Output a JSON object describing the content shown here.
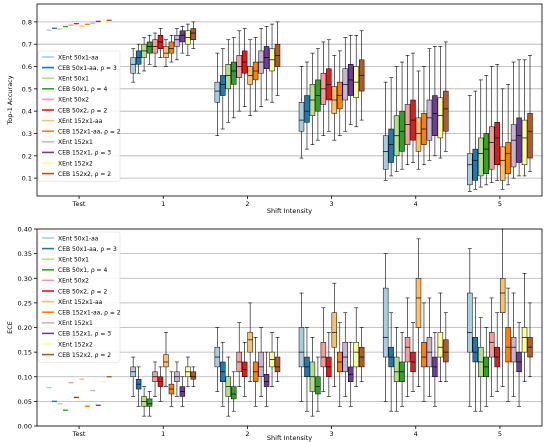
{
  "model_names": [
    "XEnt 50x1-aa",
    "CEB 50x1-aa, ρ = 3",
    "XEnt 50x1",
    "CEB 50x1, ρ = 4",
    "XEnt 50x2",
    "CEB 50x2, ρ = 2",
    "XEnt 152x1-aa",
    "CEB 152x1-aa, ρ = 2",
    "XEnt 152x1",
    "CEB 152x1, ρ = 3",
    "XEnt 152x2",
    "CEB 152x2, ρ = 2"
  ],
  "colors": [
    "#a6cee3",
    "#1f78b4",
    "#b2df8a",
    "#33a02c",
    "#fb9a99",
    "#e31a1c",
    "#fdbf6f",
    "#ff7f00",
    "#cab2d6",
    "#6a3d9a",
    "#ffff99",
    "#b15928"
  ],
  "chart_data": [
    {
      "type": "box",
      "xlabel": "Shift Intensity",
      "ylabel": "Top-1 Accuracy",
      "categories": [
        "Test",
        "1",
        "2",
        "3",
        "4",
        "5"
      ],
      "ylim": [
        0.02,
        0.88
      ],
      "yticks": [
        0.1,
        0.2,
        0.3,
        0.4,
        0.5,
        0.6,
        0.7,
        0.8
      ],
      "grid": "horizontal",
      "legend": "left",
      "series": [
        {
          "name": "XEnt 50x1-aa",
          "test": 0.763,
          "boxes": [
            [
              0.53,
              0.57,
              0.61,
              0.64,
              0.68
            ],
            [
              0.29,
              0.44,
              0.49,
              0.53,
              0.66
            ],
            [
              0.19,
              0.31,
              0.36,
              0.44,
              0.6
            ],
            [
              0.09,
              0.14,
              0.22,
              0.29,
              0.53
            ],
            [
              0.04,
              0.07,
              0.16,
              0.21,
              0.47
            ]
          ]
        },
        {
          "name": "CEB 50x1-aa, ρ = 3",
          "test": 0.771,
          "boxes": [
            [
              0.57,
              0.61,
              0.64,
              0.67,
              0.7
            ],
            [
              0.32,
              0.47,
              0.52,
              0.56,
              0.68
            ],
            [
              0.23,
              0.35,
              0.4,
              0.47,
              0.62
            ],
            [
              0.11,
              0.17,
              0.25,
              0.32,
              0.55
            ],
            [
              0.05,
              0.09,
              0.18,
              0.23,
              0.49
            ]
          ]
        },
        {
          "name": "XEnt 50x1",
          "test": 0.768,
          "boxes": [
            [
              0.58,
              0.64,
              0.67,
              0.7,
              0.73
            ],
            [
              0.35,
              0.5,
              0.56,
              0.61,
              0.72
            ],
            [
              0.25,
              0.38,
              0.45,
              0.52,
              0.66
            ],
            [
              0.13,
              0.2,
              0.29,
              0.38,
              0.6
            ],
            [
              0.06,
              0.11,
              0.21,
              0.28,
              0.54
            ]
          ]
        },
        {
          "name": "CEB 50x1, ρ = 4",
          "test": 0.779,
          "boxes": [
            [
              0.61,
              0.66,
              0.69,
              0.71,
              0.74
            ],
            [
              0.37,
              0.52,
              0.58,
              0.62,
              0.73
            ],
            [
              0.27,
              0.4,
              0.47,
              0.54,
              0.68
            ],
            [
              0.14,
              0.22,
              0.31,
              0.4,
              0.62
            ],
            [
              0.07,
              0.12,
              0.23,
              0.3,
              0.56
            ]
          ]
        },
        {
          "name": "XEnt 50x2",
          "test": 0.785,
          "boxes": [
            [
              0.6,
              0.66,
              0.69,
              0.72,
              0.75
            ],
            [
              0.4,
              0.55,
              0.6,
              0.65,
              0.76
            ],
            [
              0.29,
              0.43,
              0.5,
              0.57,
              0.71
            ],
            [
              0.16,
              0.25,
              0.34,
              0.43,
              0.65
            ],
            [
              0.08,
              0.14,
              0.26,
              0.33,
              0.6
            ]
          ]
        },
        {
          "name": "CEB 50x2, ρ = 2",
          "test": 0.792,
          "boxes": [
            [
              0.64,
              0.68,
              0.71,
              0.74,
              0.77
            ],
            [
              0.42,
              0.57,
              0.62,
              0.67,
              0.77
            ],
            [
              0.31,
              0.45,
              0.52,
              0.59,
              0.72
            ],
            [
              0.17,
              0.27,
              0.36,
              0.45,
              0.66
            ],
            [
              0.09,
              0.16,
              0.28,
              0.35,
              0.61
            ]
          ]
        },
        {
          "name": "XEnt 152x1-aa",
          "test": 0.781,
          "boxes": [
            [
              0.6,
              0.64,
              0.66,
              0.69,
              0.72
            ],
            [
              0.38,
              0.52,
              0.56,
              0.6,
              0.72
            ],
            [
              0.27,
              0.39,
              0.45,
              0.51,
              0.65
            ],
            [
              0.14,
              0.22,
              0.3,
              0.37,
              0.58
            ],
            [
              0.05,
              0.09,
              0.18,
              0.24,
              0.5
            ]
          ]
        },
        {
          "name": "CEB 152x1-aa, ρ = 2",
          "test": 0.789,
          "boxes": [
            [
              0.62,
              0.66,
              0.68,
              0.71,
              0.74
            ],
            [
              0.4,
              0.54,
              0.58,
              0.62,
              0.73
            ],
            [
              0.29,
              0.41,
              0.47,
              0.53,
              0.67
            ],
            [
              0.16,
              0.25,
              0.32,
              0.39,
              0.6
            ],
            [
              0.07,
              0.12,
              0.21,
              0.26,
              0.52
            ]
          ]
        },
        {
          "name": "XEnt 152x1",
          "test": 0.794,
          "boxes": [
            [
              0.63,
              0.69,
              0.72,
              0.74,
              0.77
            ],
            [
              0.42,
              0.57,
              0.62,
              0.67,
              0.77
            ],
            [
              0.31,
              0.45,
              0.52,
              0.59,
              0.73
            ],
            [
              0.18,
              0.27,
              0.37,
              0.45,
              0.68
            ],
            [
              0.1,
              0.15,
              0.27,
              0.34,
              0.62
            ]
          ]
        },
        {
          "name": "CEB 152x1, ρ = 3",
          "test": 0.802,
          "boxes": [
            [
              0.66,
              0.71,
              0.74,
              0.76,
              0.78
            ],
            [
              0.45,
              0.59,
              0.64,
              0.69,
              0.78
            ],
            [
              0.34,
              0.47,
              0.54,
              0.61,
              0.74
            ],
            [
              0.2,
              0.29,
              0.39,
              0.47,
              0.69
            ],
            [
              0.11,
              0.17,
              0.29,
              0.37,
              0.63
            ]
          ]
        },
        {
          "name": "XEnt 152x2",
          "test": 0.798,
          "boxes": [
            [
              0.65,
              0.7,
              0.73,
              0.76,
              0.79
            ],
            [
              0.44,
              0.58,
              0.63,
              0.68,
              0.79
            ],
            [
              0.33,
              0.46,
              0.53,
              0.6,
              0.74
            ],
            [
              0.19,
              0.28,
              0.38,
              0.46,
              0.69
            ],
            [
              0.11,
              0.16,
              0.28,
              0.36,
              0.63
            ]
          ]
        },
        {
          "name": "CEB 152x2, ρ = 2",
          "test": 0.807,
          "boxes": [
            [
              0.68,
              0.72,
              0.75,
              0.77,
              0.8
            ],
            [
              0.47,
              0.6,
              0.65,
              0.7,
              0.8
            ],
            [
              0.36,
              0.49,
              0.56,
              0.63,
              0.76
            ],
            [
              0.22,
              0.31,
              0.41,
              0.49,
              0.71
            ],
            [
              0.13,
              0.19,
              0.31,
              0.39,
              0.65
            ]
          ]
        }
      ]
    },
    {
      "type": "box",
      "xlabel": "Shift Intensity",
      "ylabel": "ECE",
      "categories": [
        "Test",
        "1",
        "2",
        "3",
        "4",
        "5"
      ],
      "ylim": [
        0.0,
        0.4
      ],
      "yticks": [
        0.0,
        0.05,
        0.1,
        0.15,
        0.2,
        0.25,
        0.3,
        0.35,
        0.4
      ],
      "grid": "horizontal",
      "legend": "left",
      "series": [
        {
          "name": "XEnt 50x1-aa",
          "test": 0.078,
          "boxes": [
            [
              0.06,
              0.1,
              0.11,
              0.12,
              0.14
            ],
            [
              0.07,
              0.12,
              0.14,
              0.16,
              0.2
            ],
            [
              0.05,
              0.12,
              0.15,
              0.2,
              0.27
            ],
            [
              0.05,
              0.14,
              0.18,
              0.28,
              0.35
            ],
            [
              0.04,
              0.15,
              0.19,
              0.27,
              0.36
            ]
          ]
        },
        {
          "name": "CEB 50x1-aa, ρ = 3",
          "test": 0.05,
          "boxes": [
            [
              0.04,
              0.075,
              0.085,
              0.095,
              0.12
            ],
            [
              0.04,
              0.09,
              0.11,
              0.13,
              0.17
            ],
            [
              0.03,
              0.1,
              0.12,
              0.14,
              0.2
            ],
            [
              0.03,
              0.12,
              0.14,
              0.16,
              0.23
            ],
            [
              0.03,
              0.13,
              0.15,
              0.18,
              0.26
            ]
          ]
        },
        {
          "name": "XEnt 50x1",
          "test": 0.045,
          "boxes": [
            [
              0.02,
              0.04,
              0.05,
              0.06,
              0.08
            ],
            [
              0.02,
              0.06,
              0.08,
              0.1,
              0.14
            ],
            [
              0.02,
              0.07,
              0.1,
              0.13,
              0.18
            ],
            [
              0.03,
              0.09,
              0.11,
              0.14,
              0.2
            ],
            [
              0.03,
              0.1,
              0.13,
              0.16,
              0.22
            ]
          ]
        },
        {
          "name": "CEB 50x1, ρ = 4",
          "test": 0.032,
          "boxes": [
            [
              0.02,
              0.04,
              0.045,
              0.055,
              0.07
            ],
            [
              0.03,
              0.055,
              0.065,
              0.08,
              0.11
            ],
            [
              0.03,
              0.065,
              0.08,
              0.1,
              0.14
            ],
            [
              0.04,
              0.09,
              0.11,
              0.13,
              0.19
            ],
            [
              0.04,
              0.1,
              0.12,
              0.14,
              0.2
            ]
          ]
        },
        {
          "name": "XEnt 50x2",
          "test": 0.088,
          "boxes": [
            [
              0.06,
              0.09,
              0.1,
              0.11,
              0.13
            ],
            [
              0.08,
              0.11,
              0.13,
              0.15,
              0.21
            ],
            [
              0.07,
              0.12,
              0.14,
              0.17,
              0.24
            ],
            [
              0.06,
              0.13,
              0.16,
              0.18,
              0.26
            ],
            [
              0.06,
              0.14,
              0.17,
              0.19,
              0.26
            ]
          ]
        },
        {
          "name": "CEB 50x2, ρ = 2",
          "test": 0.058,
          "boxes": [
            [
              0.05,
              0.08,
              0.09,
              0.1,
              0.12
            ],
            [
              0.06,
              0.1,
              0.115,
              0.13,
              0.17
            ],
            [
              0.06,
              0.1,
              0.12,
              0.14,
              0.19
            ],
            [
              0.07,
              0.11,
              0.13,
              0.15,
              0.21
            ],
            [
              0.07,
              0.12,
              0.14,
              0.16,
              0.23
            ]
          ]
        },
        {
          "name": "XEnt 152x1-aa",
          "test": 0.095,
          "boxes": [
            [
              0.08,
              0.12,
              0.13,
              0.145,
              0.19
            ],
            [
              0.09,
              0.15,
              0.175,
              0.19,
              0.25
            ],
            [
              0.08,
              0.16,
              0.19,
              0.23,
              0.29
            ],
            [
              0.08,
              0.2,
              0.26,
              0.3,
              0.38
            ],
            [
              0.08,
              0.23,
              0.27,
              0.3,
              0.4
            ]
          ]
        },
        {
          "name": "CEB 152x1-aa, ρ = 2",
          "test": 0.04,
          "boxes": [
            [
              0.04,
              0.065,
              0.075,
              0.085,
              0.11
            ],
            [
              0.04,
              0.09,
              0.11,
              0.13,
              0.18
            ],
            [
              0.04,
              0.11,
              0.13,
              0.15,
              0.21
            ],
            [
              0.05,
              0.12,
              0.14,
              0.17,
              0.25
            ],
            [
              0.05,
              0.13,
              0.16,
              0.2,
              0.28
            ]
          ]
        },
        {
          "name": "XEnt 152x1",
          "test": 0.072,
          "boxes": [
            [
              0.06,
              0.09,
              0.1,
              0.11,
              0.13
            ],
            [
              0.06,
              0.1,
              0.12,
              0.15,
              0.2
            ],
            [
              0.06,
              0.11,
              0.14,
              0.17,
              0.23
            ],
            [
              0.06,
              0.12,
              0.15,
              0.18,
              0.26
            ],
            [
              0.06,
              0.13,
              0.16,
              0.18,
              0.27
            ]
          ]
        },
        {
          "name": "CEB 152x1, ρ = 3",
          "test": 0.042,
          "boxes": [
            [
              0.04,
              0.06,
              0.07,
              0.08,
              0.1
            ],
            [
              0.04,
              0.08,
              0.09,
              0.105,
              0.15
            ],
            [
              0.04,
              0.09,
              0.105,
              0.12,
              0.17
            ],
            [
              0.04,
              0.1,
              0.12,
              0.14,
              0.19
            ],
            [
              0.04,
              0.11,
              0.13,
              0.15,
              0.21
            ]
          ]
        },
        {
          "name": "XEnt 152x2",
          "test": 0.09,
          "boxes": [
            [
              0.08,
              0.1,
              0.11,
              0.12,
              0.14
            ],
            [
              0.08,
              0.12,
              0.135,
              0.15,
              0.19
            ],
            [
              0.08,
              0.12,
              0.15,
              0.17,
              0.24
            ],
            [
              0.09,
              0.14,
              0.16,
              0.19,
              0.27
            ],
            [
              0.09,
              0.15,
              0.18,
              0.2,
              0.31
            ]
          ]
        },
        {
          "name": "CEB 152x2, ρ = 2",
          "test": 0.1,
          "boxes": [
            [
              0.08,
              0.095,
              0.1,
              0.11,
              0.12
            ],
            [
              0.09,
              0.11,
              0.12,
              0.14,
              0.18
            ],
            [
              0.09,
              0.12,
              0.14,
              0.16,
              0.2
            ],
            [
              0.09,
              0.13,
              0.15,
              0.175,
              0.23
            ],
            [
              0.1,
              0.14,
              0.16,
              0.18,
              0.25
            ]
          ]
        }
      ]
    }
  ]
}
